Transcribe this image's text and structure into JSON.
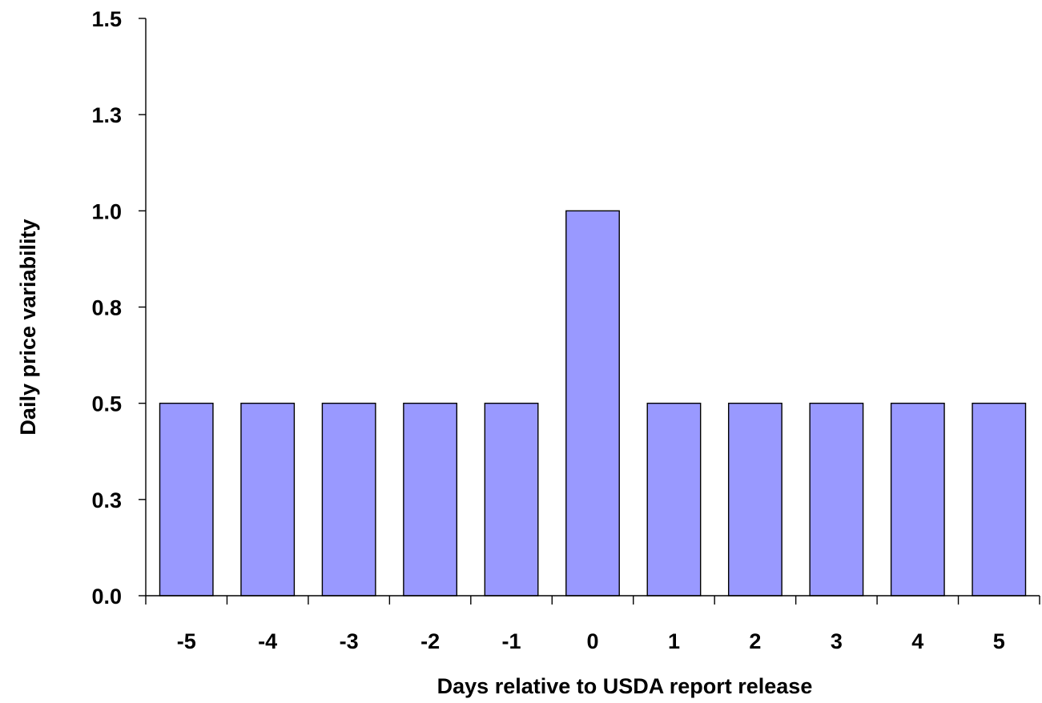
{
  "chart_data": {
    "type": "bar",
    "categories": [
      "-5",
      "-4",
      "-3",
      "-2",
      "-1",
      "0",
      "1",
      "2",
      "3",
      "4",
      "5"
    ],
    "values": [
      0.5,
      0.5,
      0.5,
      0.5,
      0.5,
      1.0,
      0.5,
      0.5,
      0.5,
      0.5,
      0.5
    ],
    "title": "",
    "xlabel": "Days relative to USDA report release",
    "ylabel": "Daily price variability",
    "ylim": [
      0,
      1.5
    ],
    "yticks": [
      {
        "value": 0.0,
        "label": "0.0"
      },
      {
        "value": 0.25,
        "label": "0.3"
      },
      {
        "value": 0.5,
        "label": "0.5"
      },
      {
        "value": 0.75,
        "label": "0.8"
      },
      {
        "value": 1.0,
        "label": "1.0"
      },
      {
        "value": 1.25,
        "label": "1.3"
      },
      {
        "value": 1.5,
        "label": "1.5"
      }
    ],
    "bar_color": "#9999ff",
    "grid": false,
    "legend": "none"
  }
}
